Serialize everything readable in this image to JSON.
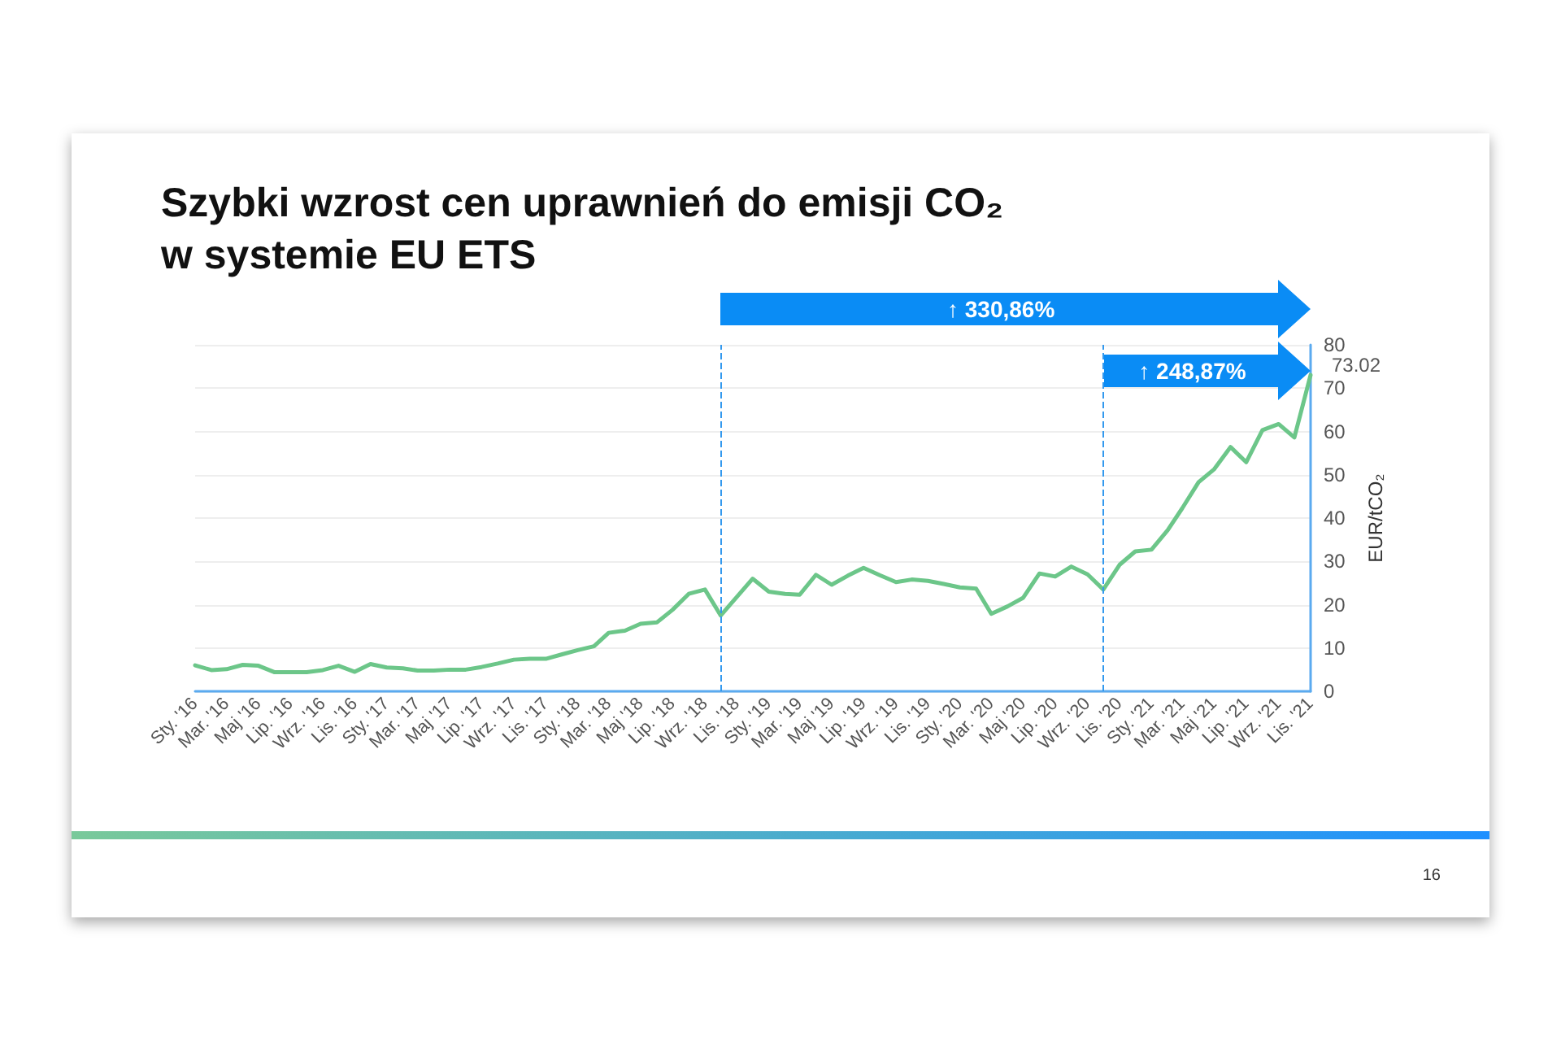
{
  "chart_data": {
    "type": "line",
    "title": "Szybki wzrost cen uprawnień do emisji CO₂\nw systemie EU ETS",
    "ylabel": "EUR/tCO₂",
    "x": [
      "2016-01",
      "2016-02",
      "2016-03",
      "2016-04",
      "2016-05",
      "2016-06",
      "2016-07",
      "2016-08",
      "2016-09",
      "2016-10",
      "2016-11",
      "2016-12",
      "2017-01",
      "2017-02",
      "2017-03",
      "2017-04",
      "2017-05",
      "2017-06",
      "2017-07",
      "2017-08",
      "2017-09",
      "2017-10",
      "2017-11",
      "2017-12",
      "2018-01",
      "2018-02",
      "2018-03",
      "2018-04",
      "2018-05",
      "2018-06",
      "2018-07",
      "2018-08",
      "2018-09",
      "2018-10",
      "2018-11",
      "2018-12",
      "2019-01",
      "2019-02",
      "2019-03",
      "2019-04",
      "2019-05",
      "2019-06",
      "2019-07",
      "2019-08",
      "2019-09",
      "2019-10",
      "2019-11",
      "2019-12",
      "2020-01",
      "2020-02",
      "2020-03",
      "2020-04",
      "2020-05",
      "2020-06",
      "2020-07",
      "2020-08",
      "2020-09",
      "2020-10",
      "2020-11",
      "2020-12",
      "2021-01",
      "2021-02",
      "2021-03",
      "2021-04",
      "2021-05",
      "2021-06",
      "2021-07",
      "2021-08",
      "2021-09",
      "2021-10",
      "2021-11"
    ],
    "series": [
      {
        "color": "#6cc689",
        "values": [
          6.0,
          4.9,
          5.1,
          6.1,
          5.9,
          4.4,
          4.4,
          4.4,
          4.9,
          5.9,
          4.5,
          6.3,
          5.5,
          5.3,
          4.8,
          4.8,
          5.0,
          5.0,
          5.6,
          6.4,
          7.3,
          7.5,
          7.5,
          8.5,
          9.5,
          10.4,
          13.5,
          14.0,
          15.6,
          15.9,
          18.8,
          22.5,
          23.5,
          17.5,
          21.8,
          26.0,
          23.0,
          22.5,
          22.3,
          26.9,
          24.6,
          26.7,
          28.5,
          26.8,
          25.2,
          25.8,
          25.5,
          24.8,
          24.0,
          23.7,
          17.9,
          19.6,
          21.6,
          27.2,
          26.5,
          28.8,
          27.0,
          23.5,
          29.2,
          32.3,
          32.7,
          37.2,
          42.3,
          48.3,
          51.3,
          56.4,
          52.9,
          60.3,
          61.7,
          58.6,
          73.02
        ],
        "value_labels": [
          null,
          null,
          null,
          null,
          null,
          null,
          null,
          null,
          null,
          null,
          null,
          null,
          null,
          null,
          null,
          null,
          null,
          null,
          null,
          null,
          null,
          null,
          null,
          null,
          null,
          null,
          null,
          null,
          null,
          null,
          null,
          null,
          null,
          null,
          null,
          null,
          null,
          null,
          null,
          null,
          null,
          null,
          null,
          null,
          null,
          null,
          null,
          null,
          null,
          null,
          null,
          null,
          null,
          null,
          null,
          null,
          null,
          null,
          null,
          null,
          null,
          null,
          null,
          null,
          null,
          null,
          null,
          null,
          null,
          null,
          "73.02"
        ]
      }
    ],
    "xlim": [
      "2016-01",
      "2021-11"
    ],
    "xticks": [
      {
        "value": "2016-01",
        "label": "Sty. '16"
      },
      {
        "value": "2016-03",
        "label": "Mar. '16"
      },
      {
        "value": "2016-05",
        "label": "Maj '16"
      },
      {
        "value": "2016-07",
        "label": "Lip. '16"
      },
      {
        "value": "2016-09",
        "label": "Wrz. '16"
      },
      {
        "value": "2016-11",
        "label": "Lis. '16"
      },
      {
        "value": "2017-01",
        "label": "Sty. '17"
      },
      {
        "value": "2017-03",
        "label": "Mar. '17"
      },
      {
        "value": "2017-05",
        "label": "Maj '17"
      },
      {
        "value": "2017-07",
        "label": "Lip. '17"
      },
      {
        "value": "2017-09",
        "label": "Wrz. '17"
      },
      {
        "value": "2017-11",
        "label": "Lis. '17"
      },
      {
        "value": "2018-01",
        "label": "Sty. '18"
      },
      {
        "value": "2018-03",
        "label": "Mar. '18"
      },
      {
        "value": "2018-05",
        "label": "Maj '18"
      },
      {
        "value": "2018-07",
        "label": "Lip. '18"
      },
      {
        "value": "2018-09",
        "label": "Wrz. '18"
      },
      {
        "value": "2018-11",
        "label": "Lis. '18"
      },
      {
        "value": "2019-01",
        "label": "Sty. '19"
      },
      {
        "value": "2019-03",
        "label": "Mar. '19"
      },
      {
        "value": "2019-05",
        "label": "Maj '19"
      },
      {
        "value": "2019-07",
        "label": "Lip. '19"
      },
      {
        "value": "2019-09",
        "label": "Wrz. '19"
      },
      {
        "value": "2019-11",
        "label": "Lis. '19"
      },
      {
        "value": "2020-01",
        "label": "Sty. '20"
      },
      {
        "value": "2020-03",
        "label": "Mar. '20"
      },
      {
        "value": "2020-05",
        "label": "Maj '20"
      },
      {
        "value": "2020-07",
        "label": "Lip. '20"
      },
      {
        "value": "2020-09",
        "label": "Wrz. '20"
      },
      {
        "value": "2020-11",
        "label": "Lis. '20"
      },
      {
        "value": "2021-01",
        "label": "Sty. '21"
      },
      {
        "value": "2021-03",
        "label": "Mar. '21"
      },
      {
        "value": "2021-05",
        "label": "Maj '21"
      },
      {
        "value": "2021-07",
        "label": "Lip. '21"
      },
      {
        "value": "2021-09",
        "label": "Wrz. '21"
      },
      {
        "value": "2021-11",
        "label": "Lis. '21"
      }
    ],
    "ylim": [
      0,
      80
    ],
    "yticks": [
      0,
      10,
      20,
      30,
      40,
      50,
      60,
      70,
      80
    ],
    "grid": "y",
    "marker": "none",
    "line_style": "solid",
    "ref_lines": [
      {
        "axis": "x",
        "value": "2018-10",
        "color": "#3399ee",
        "line_style": "dashed"
      },
      {
        "axis": "x",
        "value": "2020-10",
        "color": "#3399ee",
        "line_style": "dashed"
      }
    ],
    "annotations": [
      "↑ 330,86%",
      "↑ 248,87%",
      "16"
    ]
  }
}
